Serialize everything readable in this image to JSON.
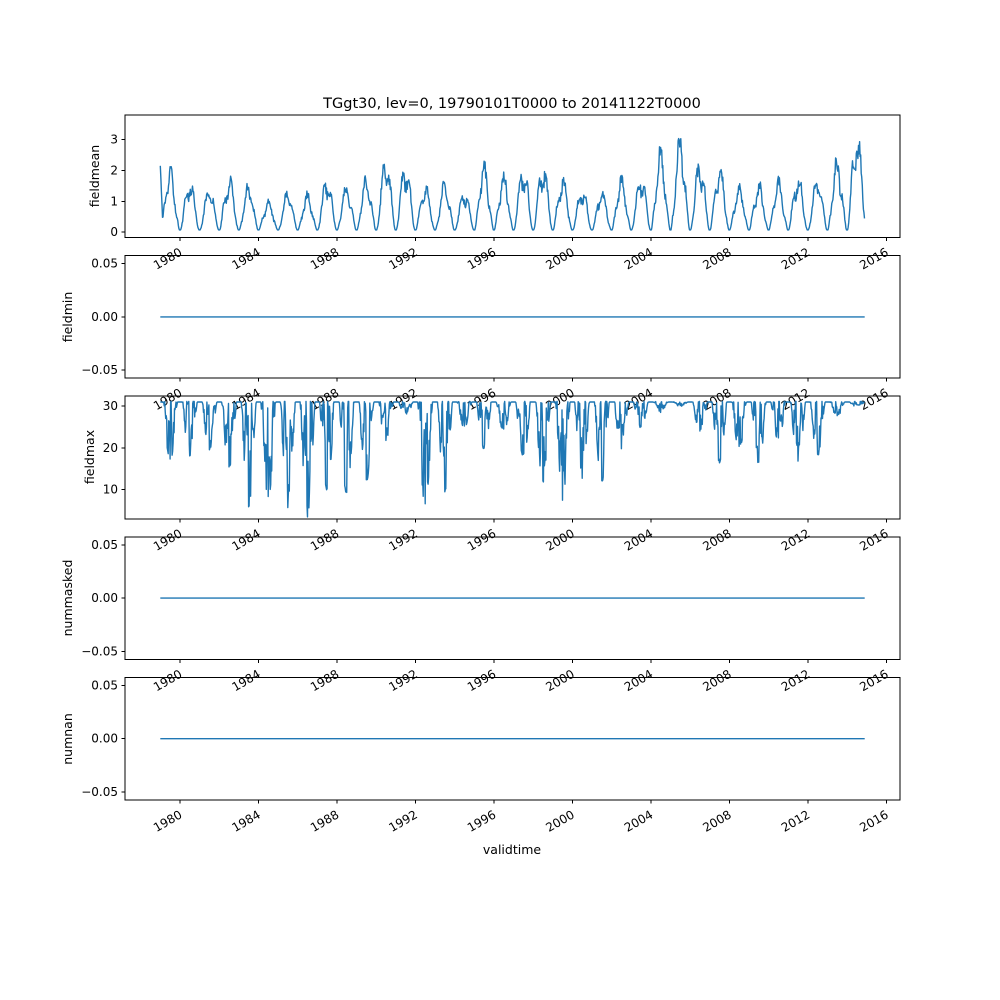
{
  "chart_data": {
    "type": "line",
    "title": "TGgt30, lev=0, 19790101T0000 to 20141122T0000",
    "xlabel": "validtime",
    "line_color": "#1f77b4",
    "x_ticks": [
      1980,
      1984,
      1988,
      1992,
      1996,
      2000,
      2004,
      2008,
      2012,
      2016
    ],
    "x_tick_labels": [
      "1980",
      "1984",
      "1988",
      "1992",
      "1996",
      "2000",
      "2004",
      "2008",
      "2012",
      "2016"
    ],
    "xlim": [
      1977.2,
      2016.7
    ],
    "data_x_range": [
      1979.0,
      2014.9
    ],
    "grid": false,
    "legend": "none",
    "subplots": [
      {
        "name": "fieldmean",
        "ylabel": "fieldmean",
        "ylim": [
          -0.18,
          3.8
        ],
        "yticks": [
          0,
          1,
          2,
          3
        ],
        "ytick_labels": [
          "0",
          "1",
          "2",
          "3"
        ],
        "series": {
          "kind": "seasonal_peaks",
          "base": 0.07,
          "years": [
            1979,
            1980,
            1981,
            1982,
            1983,
            1984,
            1985,
            1986,
            1987,
            1988,
            1989,
            1990,
            1991,
            1992,
            1993,
            1994,
            1995,
            1996,
            1997,
            1998,
            1999,
            2000,
            2001,
            2002,
            2003,
            2004,
            2005,
            2006,
            2007,
            2008,
            2009,
            2010,
            2011,
            2012,
            2013,
            2014
          ],
          "annual_peaks": [
            2.2,
            1.8,
            1.5,
            1.9,
            1.6,
            1.1,
            1.4,
            1.3,
            1.9,
            1.6,
            1.9,
            2.6,
            2.4,
            1.6,
            1.7,
            1.4,
            2.4,
            2.0,
            2.3,
            2.4,
            1.9,
            1.5,
            1.4,
            1.9,
            2.0,
            2.9,
            3.4,
            2.5,
            2.3,
            1.6,
            1.7,
            1.8,
            2.0,
            1.9,
            2.6,
            3.6
          ]
        }
      },
      {
        "name": "fieldmin",
        "ylabel": "fieldmin",
        "ylim": [
          -0.0575,
          0.0575
        ],
        "yticks": [
          -0.05,
          0.0,
          0.05
        ],
        "ytick_labels": [
          "−0.05",
          "0.00",
          "0.05"
        ],
        "series": {
          "kind": "constant",
          "value": 0
        }
      },
      {
        "name": "fieldmax",
        "ylabel": "fieldmax",
        "ylim": [
          3.0,
          32.4
        ],
        "yticks": [
          10,
          20,
          30
        ],
        "ytick_labels": [
          "10",
          "20",
          "30"
        ],
        "series": {
          "kind": "seasonal_dips",
          "ceiling": 31,
          "years": [
            1979,
            1980,
            1981,
            1982,
            1983,
            1984,
            1985,
            1986,
            1987,
            1988,
            1989,
            1990,
            1991,
            1992,
            1993,
            1994,
            1995,
            1996,
            1997,
            1998,
            1999,
            2000,
            2001,
            2002,
            2003,
            2004,
            2005,
            2006,
            2007,
            2008,
            2009,
            2010,
            2011,
            2012,
            2013,
            2014
          ],
          "annual_min": [
            17,
            18,
            20,
            15,
            6,
            8,
            6,
            4,
            10,
            9,
            12,
            22,
            28,
            6,
            10,
            25,
            20,
            24,
            18,
            12,
            8,
            13,
            12,
            20,
            25,
            29,
            30,
            24,
            17,
            20,
            16,
            22,
            17,
            18,
            28,
            30
          ]
        }
      },
      {
        "name": "nummasked",
        "ylabel": "nummasked",
        "ylim": [
          -0.0575,
          0.0575
        ],
        "yticks": [
          -0.05,
          0.0,
          0.05
        ],
        "ytick_labels": [
          "−0.05",
          "0.00",
          "0.05"
        ],
        "series": {
          "kind": "constant",
          "value": 0
        }
      },
      {
        "name": "numnan",
        "ylabel": "numnan",
        "ylim": [
          -0.0575,
          0.0575
        ],
        "yticks": [
          -0.05,
          0.0,
          0.05
        ],
        "ytick_labels": [
          "−0.05",
          "0.00",
          "0.05"
        ],
        "series": {
          "kind": "constant",
          "value": 0
        }
      }
    ]
  }
}
